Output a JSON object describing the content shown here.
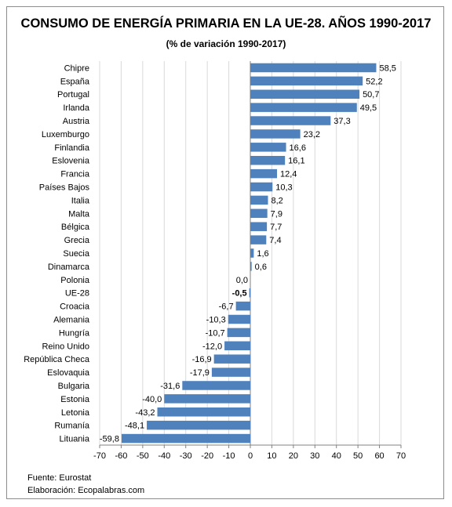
{
  "chart_data": {
    "type": "bar",
    "orientation": "horizontal",
    "title": "CONSUMO DE ENERGÍA PRIMARIA EN LA UE-28. AÑOS 1990-2017",
    "subtitle": "(% de variación 1990-2017)",
    "categories": [
      "Chipre",
      "España",
      "Portugal",
      "Irlanda",
      "Austria",
      "Luxemburgo",
      "Finlandia",
      "Eslovenia",
      "Francia",
      "Países Bajos",
      "Italia",
      "Malta",
      "Bélgica",
      "Grecia",
      "Suecia",
      "Dinamarca",
      "Polonia",
      "UE-28",
      "Croacia",
      "Alemania",
      "Hungría",
      "Reino Unido",
      "República Checa",
      "Eslovaquia",
      "Bulgaria",
      "Estonia",
      "Letonia",
      "Rumanía",
      "Lituania"
    ],
    "values": [
      58.5,
      52.2,
      50.7,
      49.5,
      37.3,
      23.2,
      16.6,
      16.1,
      12.4,
      10.3,
      8.2,
      7.9,
      7.7,
      7.4,
      1.6,
      0.6,
      0.0,
      -0.5,
      -6.7,
      -10.3,
      -10.7,
      -12.0,
      -16.9,
      -17.9,
      -31.6,
      -40.0,
      -43.2,
      -48.1,
      -59.8
    ],
    "value_labels": [
      "58,5",
      "52,2",
      "50,7",
      "49,5",
      "37,3",
      "23,2",
      "16,6",
      "16,1",
      "12,4",
      "10,3",
      "8,2",
      "7,9",
      "7,7",
      "7,4",
      "1,6",
      "0,6",
      "0,0",
      "-0,5",
      "-6,7",
      "-10,3",
      "-10,7",
      "-12,0",
      "-16,9",
      "-17,9",
      "-31,6",
      "-40,0",
      "-43,2",
      "-48,1",
      "-59,8"
    ],
    "highlight_category": "UE-28",
    "xlim": [
      -70,
      70
    ],
    "xticks": [
      -70,
      -60,
      -50,
      -40,
      -30,
      -20,
      -10,
      0,
      10,
      20,
      30,
      40,
      50,
      60,
      70
    ],
    "grid": true,
    "bar_color": "#4f81bd",
    "grid_color": "#d9d9d9"
  },
  "footer": {
    "source": "Fuente: Eurostat",
    "elaboration": "Elaboración: Ecopalabras.com"
  }
}
